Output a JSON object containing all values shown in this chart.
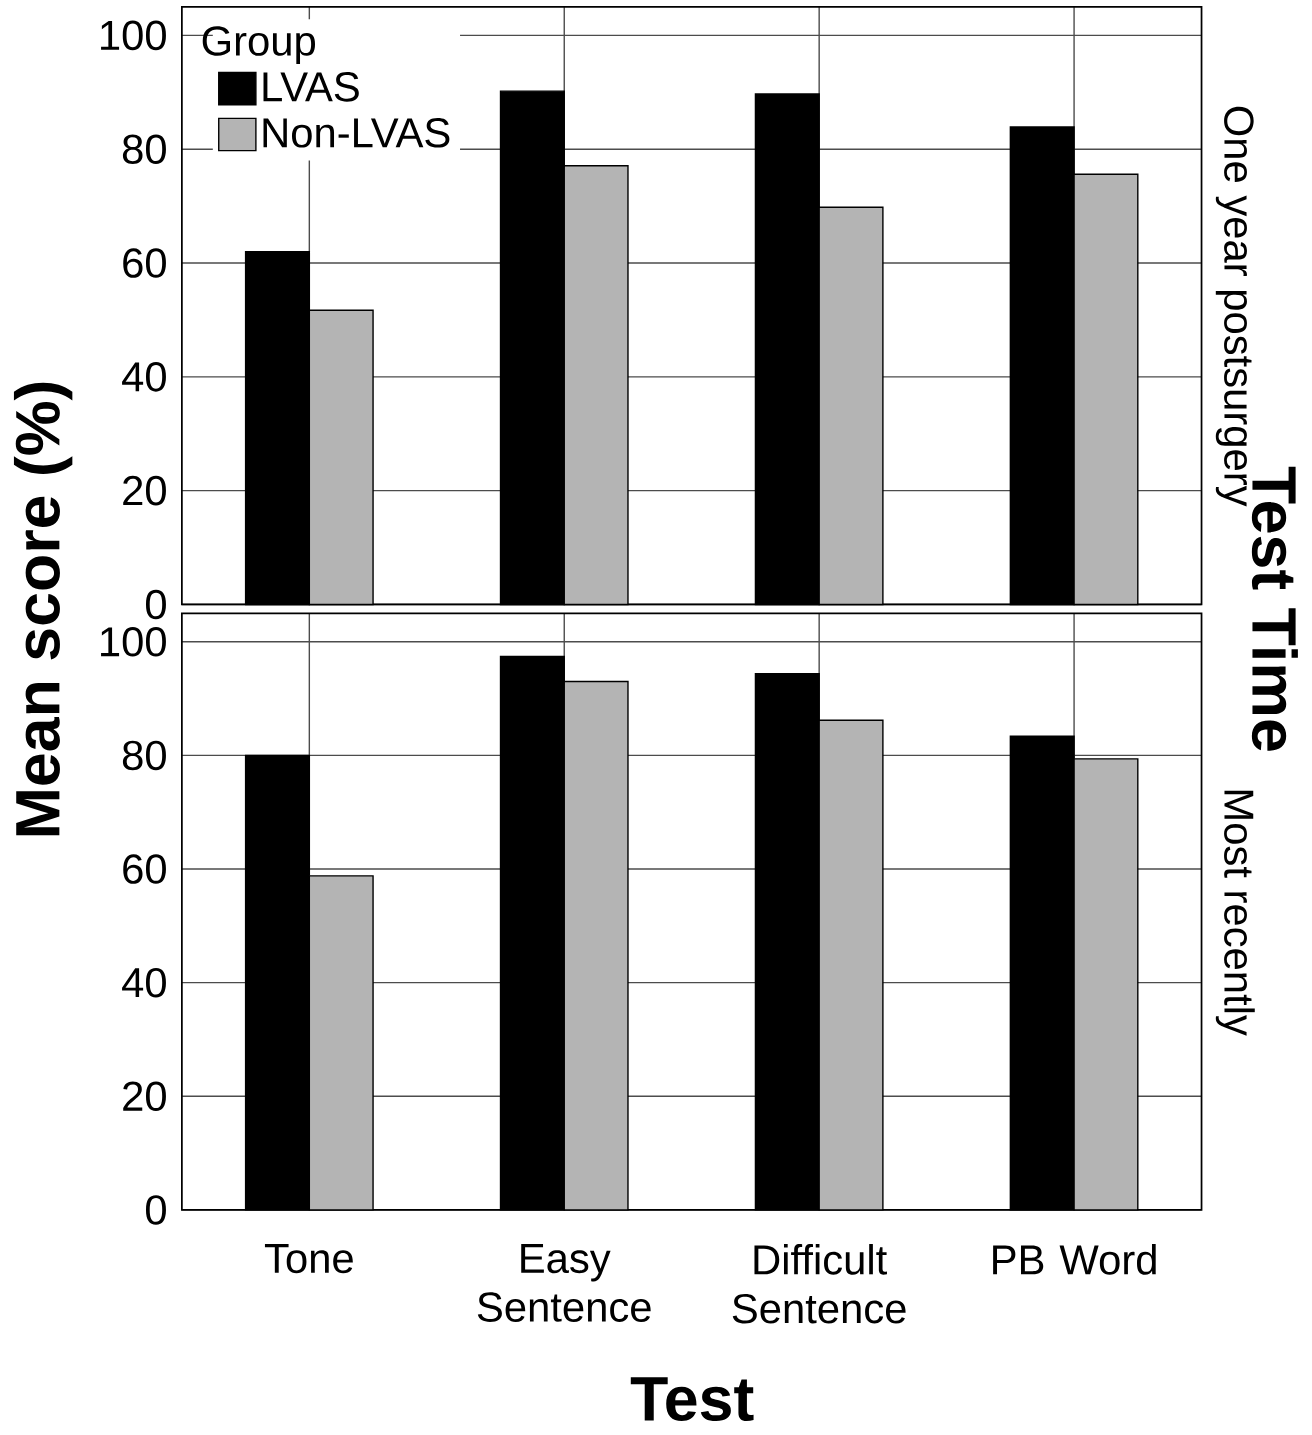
{
  "chart_data": [
    {
      "type": "bar",
      "subtitle": "One year postsurgery",
      "ylabel": "Mean score (%)",
      "y2label": "Test Time",
      "legend_title": "Group",
      "legend": "top left",
      "grid": true,
      "tick_labels": "y",
      "categories": [
        null,
        null,
        null,
        null
      ],
      "series": [
        {
          "name": "LVAS",
          "color": "#000000",
          "values": [
            62,
            90.2,
            89.7,
            83.9
          ]
        },
        {
          "name": "Non-LVAS",
          "color": "#b4b4b4",
          "values": [
            51.7,
            77.1,
            69.8,
            75.6
          ]
        }
      ],
      "ylim": [
        0,
        105
      ],
      "yticks": [
        0,
        20,
        40,
        60,
        80,
        100
      ]
    },
    {
      "type": "bar",
      "subtitle": "Most recently",
      "xlabel": "Test",
      "grid": true,
      "categories": [
        "Tone",
        "Easy Sentence",
        "Difficult Sentence",
        "PB Word"
      ],
      "series": [
        {
          "color": "#000000",
          "values": [
            80,
            97.4,
            94.4,
            83.4
          ]
        },
        {
          "color": "#b4b4b4",
          "values": [
            58.8,
            93.0,
            86.2,
            79.4
          ]
        }
      ],
      "ylim": [
        0,
        105
      ],
      "yticks": [
        0,
        20,
        40,
        60,
        80,
        100
      ]
    }
  ]
}
